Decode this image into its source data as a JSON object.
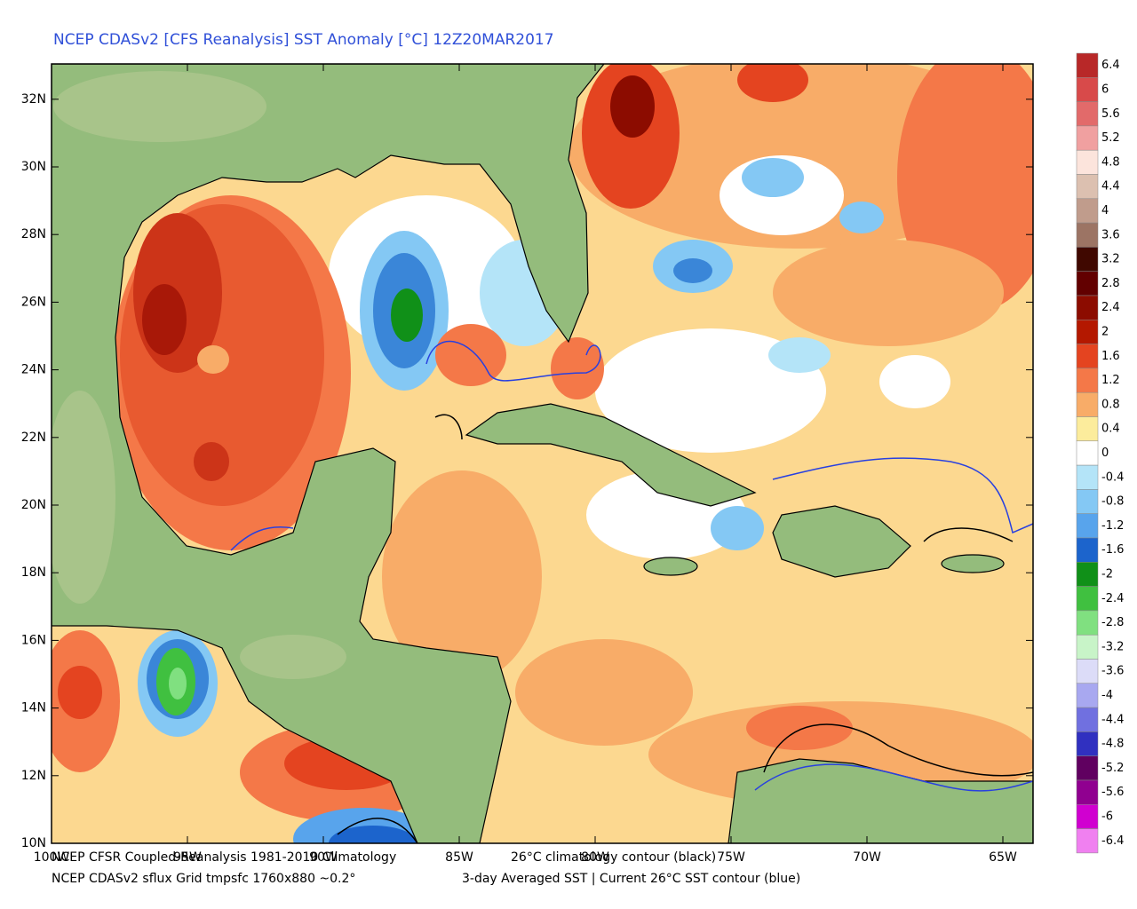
{
  "title": "NCEP CDASv2 [CFS Reanalysis] SST Anomaly [°C] 12Z20MAR2017",
  "lat_labels": [
    "10N",
    "12N",
    "14N",
    "16N",
    "18N",
    "20N",
    "22N",
    "24N",
    "26N",
    "28N",
    "30N",
    "32N"
  ],
  "lon_labels": [
    "100W",
    "95W",
    "90W",
    "85W",
    "80W",
    "75W",
    "70W",
    "65W"
  ],
  "colorbar": [
    {
      "label": "6.4",
      "color": "#b82828"
    },
    {
      "label": "6",
      "color": "#d84a4a"
    },
    {
      "label": "5.6",
      "color": "#e26a6a"
    },
    {
      "label": "5.2",
      "color": "#f0a0a0"
    },
    {
      "label": "4.8",
      "color": "#fce4dc"
    },
    {
      "label": "4.4",
      "color": "#dcc0b0"
    },
    {
      "label": "4",
      "color": "#c09c8c"
    },
    {
      "label": "3.6",
      "color": "#9c7464"
    },
    {
      "label": "3.2",
      "color": "#400800"
    },
    {
      "label": "2.8",
      "color": "#620000"
    },
    {
      "label": "2.4",
      "color": "#8c0c00"
    },
    {
      "label": "2",
      "color": "#b41800"
    },
    {
      "label": "1.6",
      "color": "#e44420"
    },
    {
      "label": "1.2",
      "color": "#f47848"
    },
    {
      "label": "0.8",
      "color": "#f8ac68"
    },
    {
      "label": "0.4",
      "color": "#fcec9c"
    },
    {
      "label": "0",
      "color": "#ffffff"
    },
    {
      "label": "-0.4",
      "color": "#b4e4f8"
    },
    {
      "label": "-0.8",
      "color": "#84c8f4"
    },
    {
      "label": "-1.2",
      "color": "#58a4ec"
    },
    {
      "label": "-1.6",
      "color": "#1c64cc"
    },
    {
      "label": "-2",
      "color": "#109018"
    },
    {
      "label": "-2.4",
      "color": "#40c040"
    },
    {
      "label": "-2.8",
      "color": "#80e080"
    },
    {
      "label": "-3.2",
      "color": "#c8f4c8"
    },
    {
      "label": "-3.6",
      "color": "#dcdcf8"
    },
    {
      "label": "-4",
      "color": "#a8a8f0"
    },
    {
      "label": "-4.4",
      "color": "#7070e0"
    },
    {
      "label": "-4.8",
      "color": "#3030c0"
    },
    {
      "label": "-5.2",
      "color": "#600060"
    },
    {
      "label": "-5.6",
      "color": "#900090"
    },
    {
      "label": "-6",
      "color": "#d000d0"
    },
    {
      "label": "-6.4",
      "color": "#f080f0"
    }
  ],
  "footer": {
    "line1_left": "NCEP CFSR Coupled-Reanalysis 1981-2010 Climatology",
    "line1_right": "26°C climatology contour (black)",
    "line2_left": "NCEP CDASv2 sflux Grid tmpsfc 1760x880 ~0.2°",
    "line2_right": "3-day Averaged SST | Current 26°C SST contour (blue)"
  }
}
